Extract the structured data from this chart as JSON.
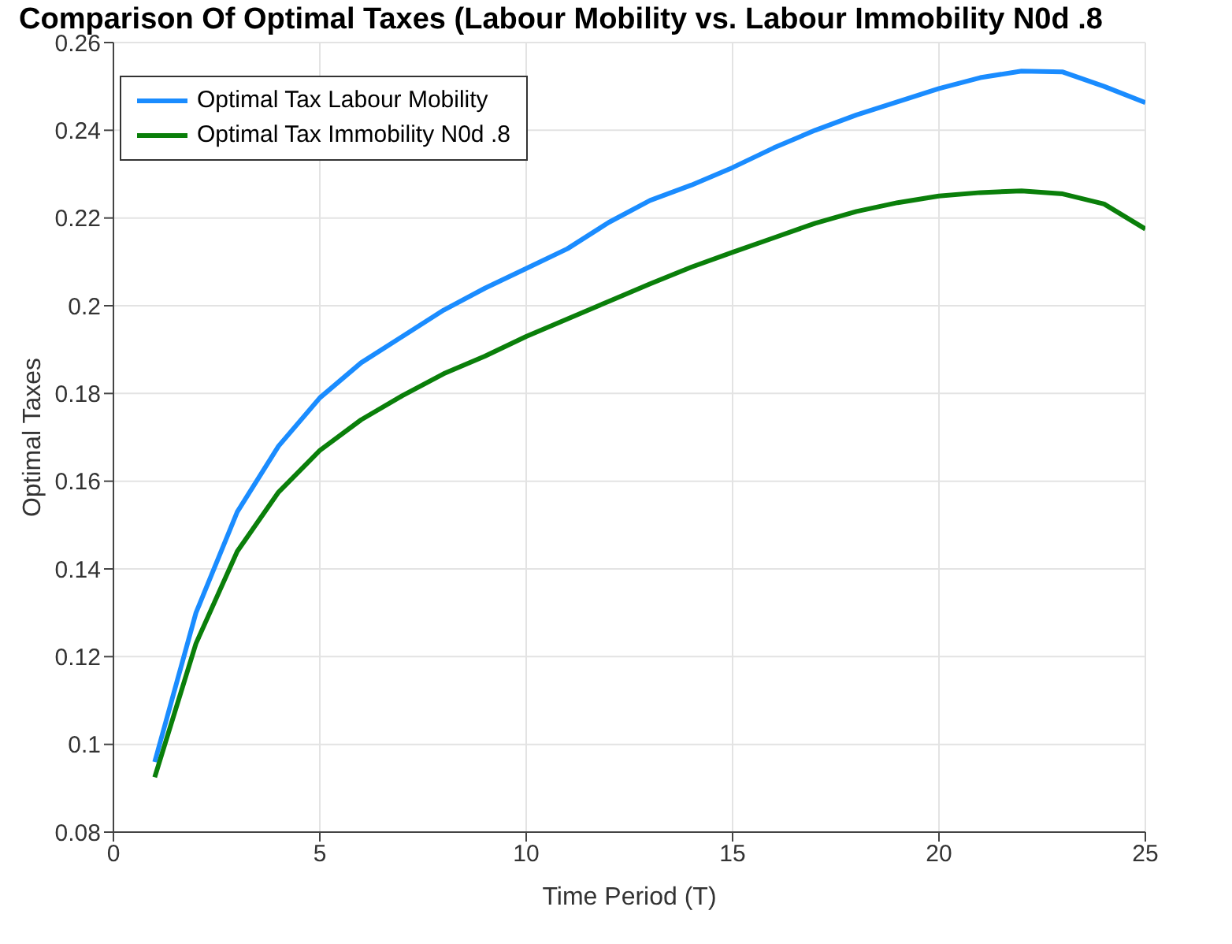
{
  "chart_data": {
    "type": "line",
    "title": "Comparison Of Optimal Taxes (Labour Mobility vs. Labour Immobility N0d .8",
    "xlabel": "Time Period (T)",
    "ylabel": "Optimal Taxes",
    "x": [
      1,
      2,
      3,
      4,
      5,
      6,
      7,
      8,
      9,
      10,
      11,
      12,
      13,
      14,
      15,
      16,
      17,
      18,
      19,
      20,
      21,
      22,
      23,
      24,
      25
    ],
    "series": [
      {
        "name": "Optimal Tax Labour Mobility",
        "color": "#1a8cff",
        "values": [
          0.096,
          0.13,
          0.153,
          0.168,
          0.179,
          0.187,
          0.193,
          0.199,
          0.204,
          0.2085,
          0.213,
          0.219,
          0.224,
          0.2275,
          0.2315,
          0.236,
          0.24,
          0.2435,
          0.2465,
          0.2495,
          0.252,
          0.2535,
          0.2533,
          0.25,
          0.2463
        ]
      },
      {
        "name": "Optimal Tax Immobility N0d .8",
        "color": "#0a7f0a",
        "values": [
          0.0925,
          0.123,
          0.144,
          0.1575,
          0.167,
          0.174,
          0.1795,
          0.1845,
          0.1885,
          0.193,
          0.197,
          0.201,
          0.205,
          0.2088,
          0.2122,
          0.2155,
          0.2188,
          0.2215,
          0.2235,
          0.225,
          0.2258,
          0.2262,
          0.2255,
          0.2232,
          0.2175
        ]
      }
    ],
    "xlim": [
      0,
      25
    ],
    "xticks": [
      0,
      5,
      10,
      15,
      20,
      25
    ],
    "ylim": [
      0.08,
      0.26
    ],
    "yticks": [
      0.08,
      0.1,
      0.12,
      0.14,
      0.16,
      0.18,
      0.2,
      0.22,
      0.24,
      0.26
    ],
    "grid": true,
    "legend": "top left",
    "marker": "none",
    "line_style": "solid"
  }
}
